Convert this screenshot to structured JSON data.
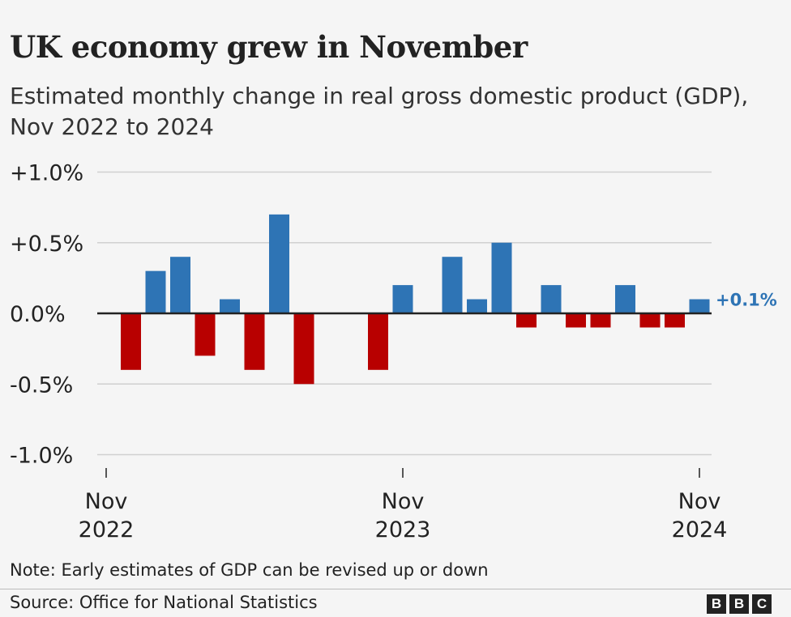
{
  "title": "UK economy grew in November",
  "subtitle": "Estimated monthly change in real gross domestic product (GDP), Nov 2022 to 2024",
  "note": "Note: Early estimates of GDP can be revised up or down",
  "source": "Source: Office for National Statistics",
  "logo": "BBC",
  "chart_data": {
    "type": "bar",
    "title": "UK economy grew in November",
    "subtitle": "Estimated monthly change in real gross domestic product (GDP), Nov 2022 to 2024",
    "categories": [
      "Nov 2022",
      "Dec 2022",
      "Jan 2023",
      "Feb 2023",
      "Mar 2023",
      "Apr 2023",
      "May 2023",
      "Jun 2023",
      "Jul 2023",
      "Aug 2023",
      "Sep 2023",
      "Oct 2023",
      "Nov 2023",
      "Dec 2023",
      "Jan 2024",
      "Feb 2024",
      "Mar 2024",
      "Apr 2024",
      "May 2024",
      "Jun 2024",
      "Jul 2024",
      "Aug 2024",
      "Sep 2024",
      "Oct 2024",
      "Nov 2024"
    ],
    "values": [
      0,
      -0.4,
      0.3,
      0.4,
      -0.3,
      0.1,
      -0.4,
      0.7,
      -0.5,
      0,
      0,
      -0.4,
      0.2,
      0,
      0.4,
      0.1,
      0.5,
      -0.1,
      0.2,
      -0.1,
      -0.1,
      0.2,
      -0.1,
      -0.1,
      0.1
    ],
    "unit": "%",
    "ylim": [
      -1.0,
      1.0
    ],
    "yticks": [
      1.0,
      0.5,
      0.0,
      -0.5,
      -1.0
    ],
    "ytick_labels": [
      "+1.0%",
      "+0.5%",
      "0.0%",
      "-0.5%",
      "-1.0%"
    ],
    "xticks": [
      {
        "index": 0,
        "line1": "Nov",
        "line2": "2022"
      },
      {
        "index": 12,
        "line1": "Nov",
        "line2": "2023"
      },
      {
        "index": 24,
        "line1": "Nov",
        "line2": "2024"
      }
    ],
    "annotation": {
      "index": 24,
      "text": "+0.1%"
    },
    "colors": {
      "positive": "#2e74b5",
      "negative": "#b80000",
      "annotation": "#2e74b5"
    },
    "grid": true,
    "xlabel": "",
    "ylabel": ""
  }
}
